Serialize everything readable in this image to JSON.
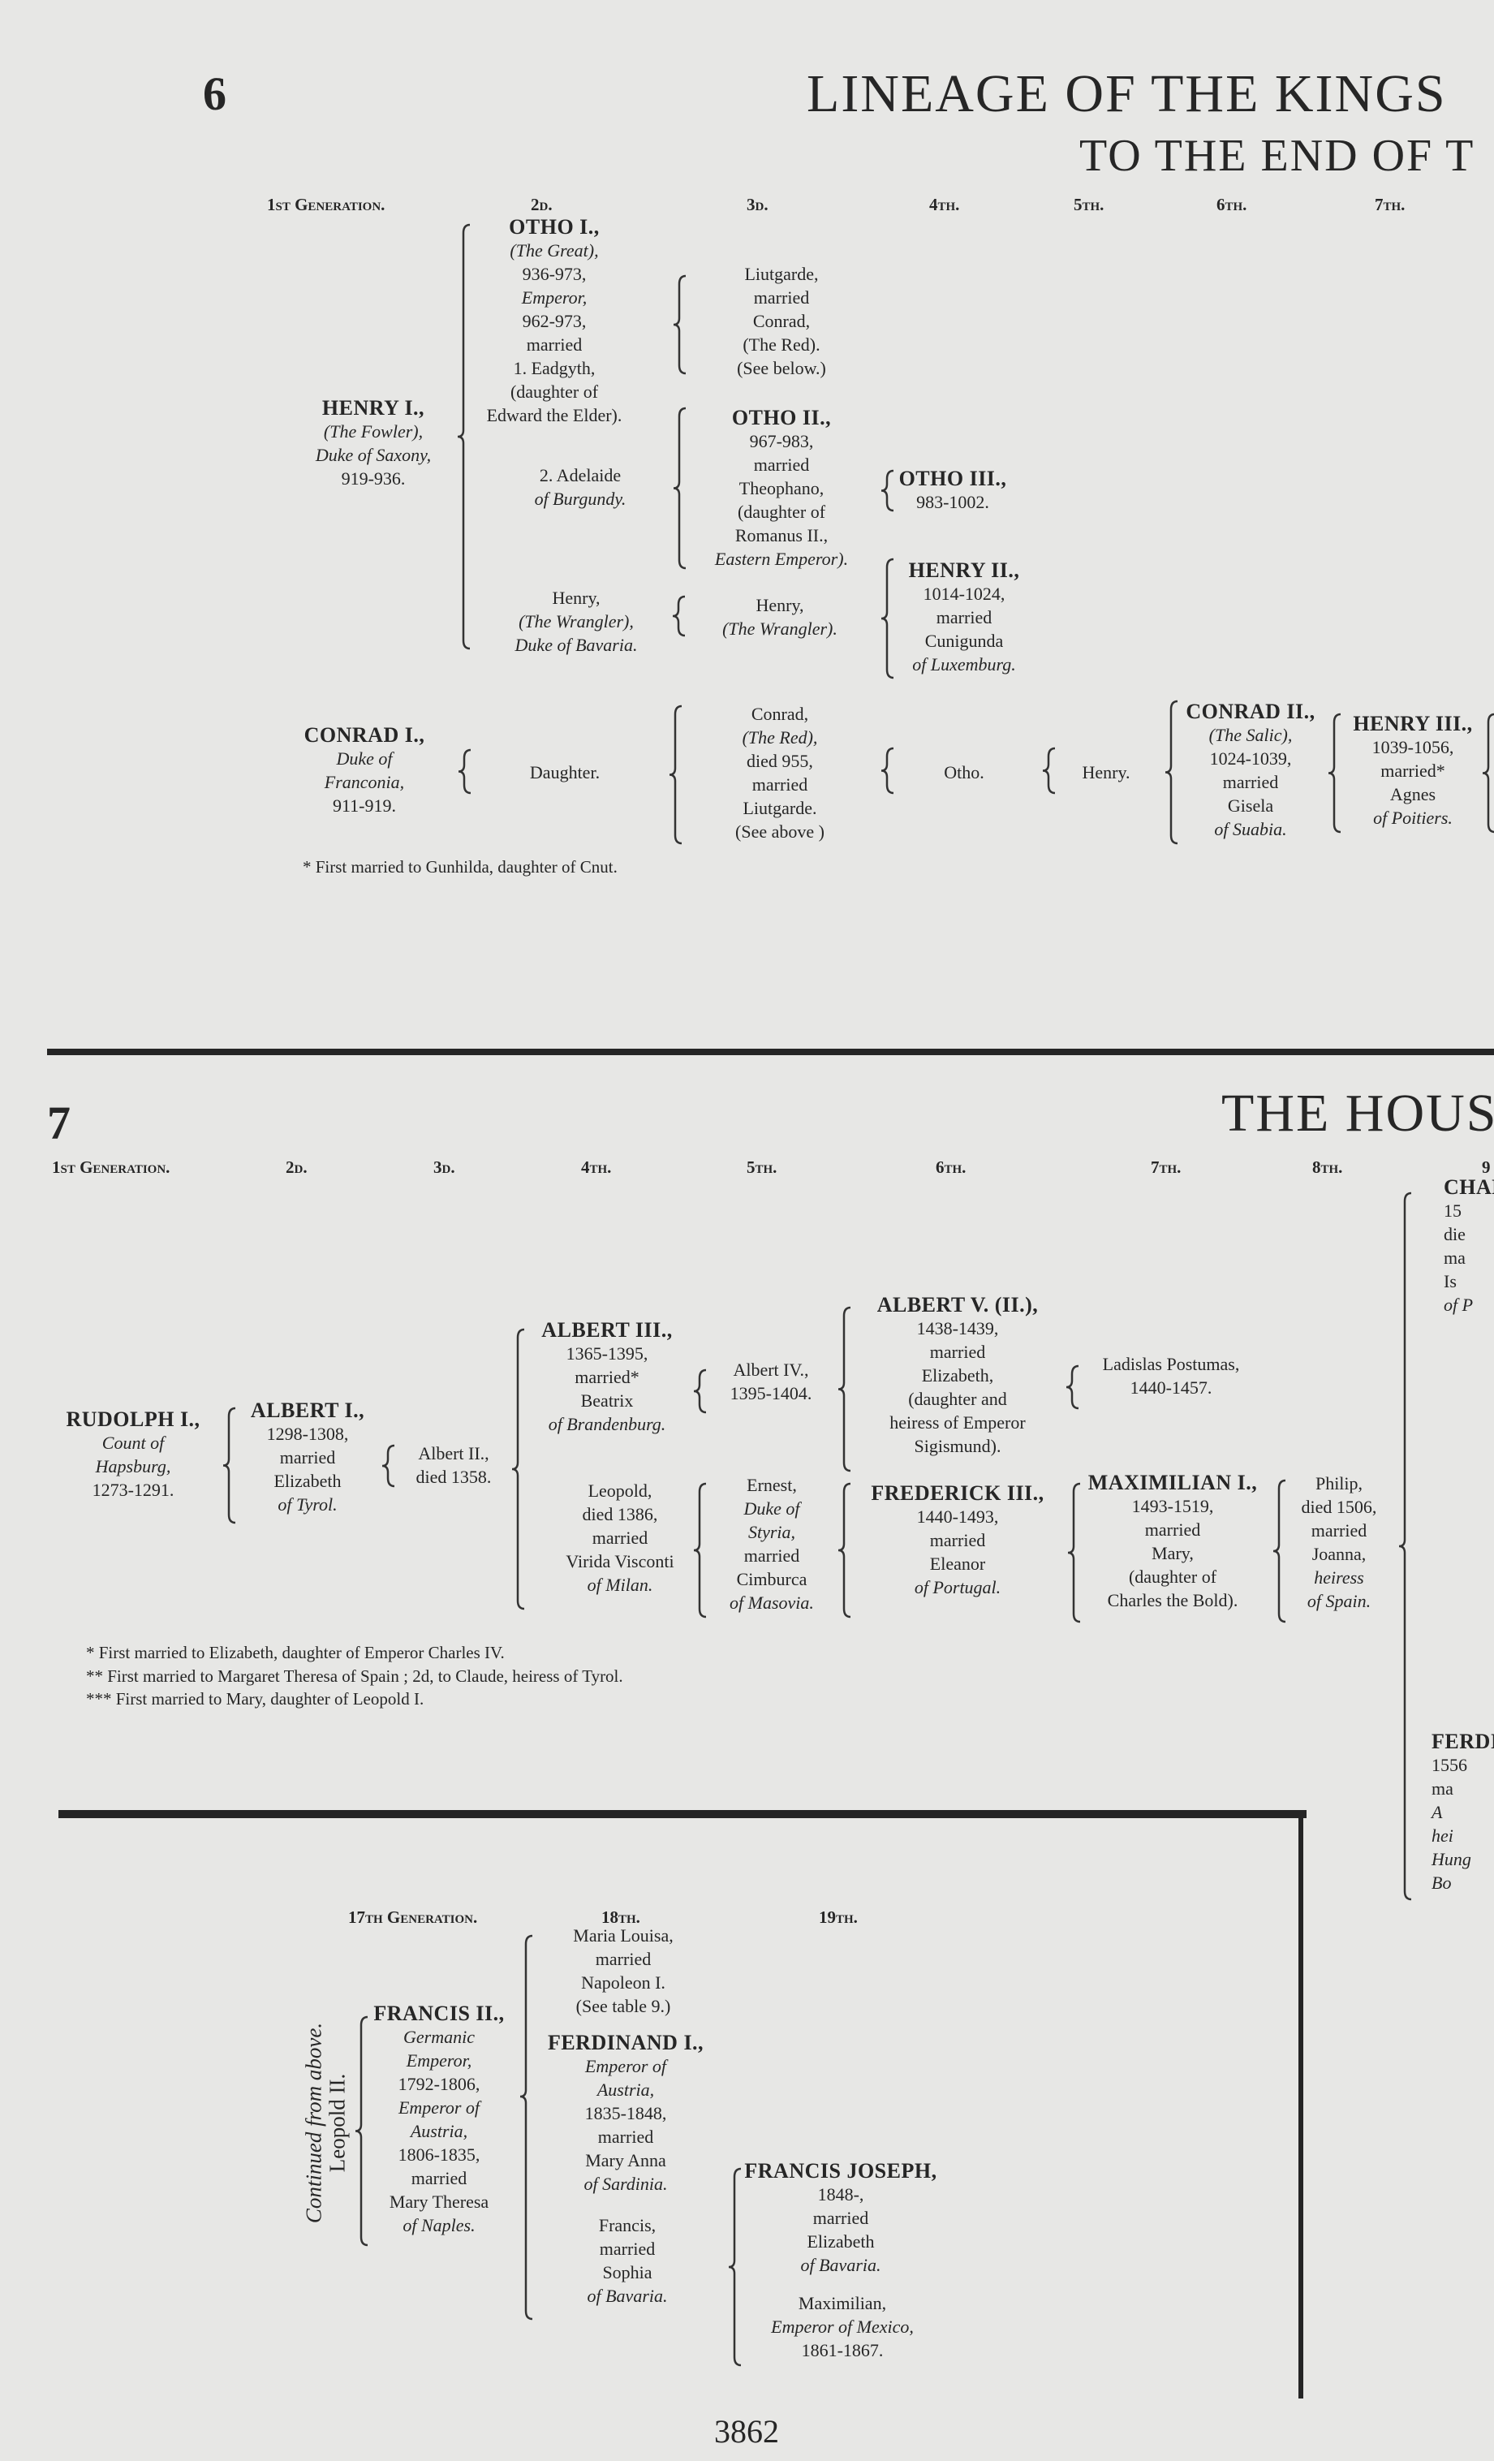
{
  "page": {
    "table6_number": "6",
    "table6_title": "LINEAGE OF THE KINGS",
    "table6_subtitle": "TO THE END OF T",
    "table7_number": "7",
    "table7_title": "THE HOUS",
    "page_number": "3862",
    "text_color": "#262626",
    "paper_color": "#e7e7e5"
  },
  "s6": {
    "headers": [
      "1st Generation.",
      "2d.",
      "3d.",
      "4th.",
      "5th.",
      "6th.",
      "7th."
    ],
    "blocks": [
      {
        "id": "henry-i",
        "lines": [
          {
            "t": "HENRY I.,",
            "s": "b"
          },
          {
            "t": "(The Fowler),",
            "s": "i"
          },
          {
            "t": "Duke of Saxony,",
            "s": "i"
          },
          {
            "t": "919-936.",
            "s": "n"
          }
        ]
      },
      {
        "id": "otho-i",
        "lines": [
          {
            "t": "OTHO I.,",
            "s": "b"
          },
          {
            "t": "(The Great),",
            "s": "i"
          },
          {
            "t": "936-973,",
            "s": "n"
          },
          {
            "t": "Emperor,",
            "s": "i"
          },
          {
            "t": "962-973,",
            "s": "n"
          },
          {
            "t": "married",
            "s": "n"
          },
          {
            "t": "1. Eadgyth,",
            "s": "n"
          },
          {
            "t": "(daughter of",
            "s": "n"
          },
          {
            "t": "Edward the Elder).",
            "s": "n"
          }
        ]
      },
      {
        "id": "adelaide",
        "lines": [
          {
            "t": "2. Adelaide",
            "s": "n"
          },
          {
            "t": "of Burgundy.",
            "s": "i"
          }
        ]
      },
      {
        "id": "henry-wrangler-2",
        "lines": [
          {
            "t": "Henry,",
            "s": "n"
          },
          {
            "t": "(The Wrangler),",
            "s": "i"
          },
          {
            "t": "Duke of Bavaria.",
            "s": "i"
          }
        ]
      },
      {
        "id": "liutgarde",
        "lines": [
          {
            "t": "Liutgarde,",
            "s": "n"
          },
          {
            "t": "married",
            "s": "n"
          },
          {
            "t": "Conrad,",
            "s": "n"
          },
          {
            "t": "(The Red).",
            "s": "n"
          },
          {
            "t": "(See below.)",
            "s": "n"
          }
        ]
      },
      {
        "id": "otho-ii",
        "lines": [
          {
            "t": "OTHO II.,",
            "s": "b"
          },
          {
            "t": "967-983,",
            "s": "n"
          },
          {
            "t": "married",
            "s": "n"
          },
          {
            "t": "Theophano,",
            "s": "n"
          },
          {
            "t": "(daughter of",
            "s": "n"
          },
          {
            "t": "Romanus II.,",
            "s": "n"
          },
          {
            "t": "Eastern Emperor).",
            "s": "i"
          }
        ]
      },
      {
        "id": "henry-wrangler-3",
        "lines": [
          {
            "t": "Henry,",
            "s": "n"
          },
          {
            "t": "(The Wrangler).",
            "s": "i"
          }
        ]
      },
      {
        "id": "otho-iii",
        "lines": [
          {
            "t": "OTHO III.,",
            "s": "b"
          },
          {
            "t": "983-1002.",
            "s": "n"
          }
        ]
      },
      {
        "id": "henry-ii",
        "lines": [
          {
            "t": "HENRY II.,",
            "s": "b"
          },
          {
            "t": "1014-1024,",
            "s": "n"
          },
          {
            "t": "married",
            "s": "n"
          },
          {
            "t": "Cunigunda",
            "s": "n"
          },
          {
            "t": "of Luxemburg.",
            "s": "i"
          }
        ]
      },
      {
        "id": "conrad-i",
        "lines": [
          {
            "t": "CONRAD I.,",
            "s": "b"
          },
          {
            "t": "Duke of",
            "s": "i"
          },
          {
            "t": "Franconia,",
            "s": "i"
          },
          {
            "t": "911-919.",
            "s": "n"
          }
        ]
      },
      {
        "id": "daughter",
        "lines": [
          {
            "t": "Daughter.",
            "s": "n"
          }
        ]
      },
      {
        "id": "conrad-the-red",
        "lines": [
          {
            "t": "Conrad,",
            "s": "n"
          },
          {
            "t": "(The Red),",
            "s": "i"
          },
          {
            "t": "died 955,",
            "s": "n"
          },
          {
            "t": "married",
            "s": "n"
          },
          {
            "t": "Liutgarde.",
            "s": "n"
          },
          {
            "t": "(See above )",
            "s": "n"
          }
        ]
      },
      {
        "id": "otho",
        "lines": [
          {
            "t": "Otho.",
            "s": "n"
          }
        ]
      },
      {
        "id": "henry",
        "lines": [
          {
            "t": "Henry.",
            "s": "n"
          }
        ]
      },
      {
        "id": "conrad-ii",
        "lines": [
          {
            "t": "CONRAD II.,",
            "s": "b"
          },
          {
            "t": "(The Salic),",
            "s": "i"
          },
          {
            "t": "1024-1039,",
            "s": "n"
          },
          {
            "t": "married",
            "s": "n"
          },
          {
            "t": "Gisela",
            "s": "n"
          },
          {
            "t": "of Suabia.",
            "s": "i"
          }
        ]
      },
      {
        "id": "henry-iii",
        "lines": [
          {
            "t": "HENRY III.,",
            "s": "b"
          },
          {
            "t": "1039-1056,",
            "s": "n"
          },
          {
            "t": "married*",
            "s": "n"
          },
          {
            "t": "Agnes",
            "s": "n"
          },
          {
            "t": "of Poitiers.",
            "s": "i"
          }
        ]
      }
    ],
    "footnotes": [
      "* First married to Gunhilda, daughter of Cnut."
    ]
  },
  "s7": {
    "headers": [
      "1st Generation.",
      "2d.",
      "3d.",
      "4th.",
      "5th.",
      "6th.",
      "7th.",
      "8th.",
      "9"
    ],
    "blocks": [
      {
        "id": "rudolph-i",
        "lines": [
          {
            "t": "RUDOLPH I.,",
            "s": "b"
          },
          {
            "t": "Count of",
            "s": "i"
          },
          {
            "t": "Hapsburg,",
            "s": "i"
          },
          {
            "t": "1273-1291.",
            "s": "n"
          }
        ]
      },
      {
        "id": "albert-i",
        "lines": [
          {
            "t": "ALBERT I.,",
            "s": "b"
          },
          {
            "t": "1298-1308,",
            "s": "n"
          },
          {
            "t": "married",
            "s": "n"
          },
          {
            "t": "Elizabeth",
            "s": "n"
          },
          {
            "t": "of Tyrol.",
            "s": "i"
          }
        ]
      },
      {
        "id": "albert-ii",
        "lines": [
          {
            "t": "Albert II.,",
            "s": "n"
          },
          {
            "t": "died 1358.",
            "s": "n"
          }
        ]
      },
      {
        "id": "albert-iii",
        "lines": [
          {
            "t": "ALBERT III.,",
            "s": "b"
          },
          {
            "t": "1365-1395,",
            "s": "n"
          },
          {
            "t": "married*",
            "s": "n"
          },
          {
            "t": "Beatrix",
            "s": "n"
          },
          {
            "t": "of Brandenburg.",
            "s": "i"
          }
        ]
      },
      {
        "id": "leopold",
        "lines": [
          {
            "t": "Leopold,",
            "s": "n"
          },
          {
            "t": "died 1386,",
            "s": "n"
          },
          {
            "t": "married",
            "s": "n"
          },
          {
            "t": "Virida Visconti",
            "s": "n"
          },
          {
            "t": "of Milan.",
            "s": "i"
          }
        ]
      },
      {
        "id": "albert-iv",
        "lines": [
          {
            "t": "Albert IV.,",
            "s": "n"
          },
          {
            "t": "1395-1404.",
            "s": "n"
          }
        ]
      },
      {
        "id": "ernest",
        "lines": [
          {
            "t": "Ernest,",
            "s": "n"
          },
          {
            "t": "Duke of",
            "s": "i"
          },
          {
            "t": "Styria,",
            "s": "i"
          },
          {
            "t": "married",
            "s": "n"
          },
          {
            "t": "Cimburca",
            "s": "n"
          },
          {
            "t": "of Masovia.",
            "s": "i"
          }
        ]
      },
      {
        "id": "albert-v",
        "lines": [
          {
            "t": "ALBERT V. (II.),",
            "s": "b"
          },
          {
            "t": "1438-1439,",
            "s": "n"
          },
          {
            "t": "married",
            "s": "n"
          },
          {
            "t": "Elizabeth,",
            "s": "n"
          },
          {
            "t": "(daughter and",
            "s": "n"
          },
          {
            "t": "heiress of Emperor",
            "s": "n"
          },
          {
            "t": "Sigismund).",
            "s": "n"
          }
        ]
      },
      {
        "id": "frederick-iii",
        "lines": [
          {
            "t": "FREDERICK III.,",
            "s": "b"
          },
          {
            "t": "1440-1493,",
            "s": "n"
          },
          {
            "t": "married",
            "s": "n"
          },
          {
            "t": "Eleanor",
            "s": "n"
          },
          {
            "t": "of Portugal.",
            "s": "i"
          }
        ]
      },
      {
        "id": "ladislas",
        "lines": [
          {
            "t": "Ladislas Postumas,",
            "s": "n"
          },
          {
            "t": "1440-1457.",
            "s": "n"
          }
        ]
      },
      {
        "id": "maximilian-i",
        "lines": [
          {
            "t": "MAXIMILIAN I.,",
            "s": "b"
          },
          {
            "t": "1493-1519,",
            "s": "n"
          },
          {
            "t": "married",
            "s": "n"
          },
          {
            "t": "Mary,",
            "s": "n"
          },
          {
            "t": "(daughter of",
            "s": "n"
          },
          {
            "t": "Charles the Bold).",
            "s": "n"
          }
        ]
      },
      {
        "id": "philip",
        "lines": [
          {
            "t": "Philip,",
            "s": "n"
          },
          {
            "t": "died 1506,",
            "s": "n"
          },
          {
            "t": "married",
            "s": "n"
          },
          {
            "t": "Joanna,",
            "s": "n"
          },
          {
            "t": "heiress",
            "s": "i"
          },
          {
            "t": "of Spain.",
            "s": "i"
          }
        ]
      },
      {
        "id": "charles-fragment",
        "lines": [
          {
            "t": "CHAR",
            "s": "b"
          },
          {
            "t": "15",
            "s": "n"
          },
          {
            "t": "die",
            "s": "n"
          },
          {
            "t": "ma",
            "s": "n"
          },
          {
            "t": "Is",
            "s": "n"
          },
          {
            "t": "of P",
            "s": "i"
          }
        ]
      },
      {
        "id": "ferdinand-fragment",
        "lines": [
          {
            "t": "FERDI",
            "s": "b"
          },
          {
            "t": "1556",
            "s": "n"
          },
          {
            "t": "ma",
            "s": "n"
          },
          {
            "t": "A",
            "s": "i"
          },
          {
            "t": "hei",
            "s": "i"
          },
          {
            "t": "Hung",
            "s": "i"
          },
          {
            "t": "Bo",
            "s": "i"
          }
        ]
      }
    ],
    "footnotes": [
      "* First married to Elizabeth, daughter of Emperor Charles IV.",
      "** First married to Margaret Theresa of Spain ; 2d, to Claude, heiress of Tyrol.",
      "*** First married to Mary, daughter of Leopold I."
    ]
  },
  "s7b": {
    "headers": [
      "17th Generation.",
      "18th.",
      "19th."
    ],
    "continued": "Continued from above.",
    "parent": "Leopold II.",
    "blocks": [
      {
        "id": "francis-ii",
        "lines": [
          {
            "t": "FRANCIS II.,",
            "s": "b"
          },
          {
            "t": "Germanic",
            "s": "i"
          },
          {
            "t": "Emperor,",
            "s": "i"
          },
          {
            "t": "1792-1806,",
            "s": "n"
          },
          {
            "t": "Emperor of",
            "s": "i"
          },
          {
            "t": "Austria,",
            "s": "i"
          },
          {
            "t": "1806-1835,",
            "s": "n"
          },
          {
            "t": "married",
            "s": "n"
          },
          {
            "t": "Mary Theresa",
            "s": "n"
          },
          {
            "t": "of Naples.",
            "s": "i"
          }
        ]
      },
      {
        "id": "maria-louisa",
        "lines": [
          {
            "t": "Maria Louisa,",
            "s": "n"
          },
          {
            "t": "married",
            "s": "n"
          },
          {
            "t": "Napoleon I.",
            "s": "n"
          },
          {
            "t": "(See table 9.)",
            "s": "n"
          }
        ]
      },
      {
        "id": "ferdinand-i",
        "lines": [
          {
            "t": "FERDINAND I.,",
            "s": "b"
          },
          {
            "t": "Emperor of",
            "s": "i"
          },
          {
            "t": "Austria,",
            "s": "i"
          },
          {
            "t": "1835-1848,",
            "s": "n"
          },
          {
            "t": "married",
            "s": "n"
          },
          {
            "t": "Mary Anna",
            "s": "n"
          },
          {
            "t": "of Sardinia.",
            "s": "i"
          }
        ]
      },
      {
        "id": "francis",
        "lines": [
          {
            "t": "Francis,",
            "s": "n"
          },
          {
            "t": "married",
            "s": "n"
          },
          {
            "t": "Sophia",
            "s": "n"
          },
          {
            "t": "of Bavaria.",
            "s": "i"
          }
        ]
      },
      {
        "id": "francis-joseph",
        "lines": [
          {
            "t": "FRANCIS JOSEPH,",
            "s": "b"
          },
          {
            "t": "1848-,",
            "s": "n"
          },
          {
            "t": "married",
            "s": "n"
          },
          {
            "t": "Elizabeth",
            "s": "n"
          },
          {
            "t": "of Bavaria.",
            "s": "i"
          }
        ]
      },
      {
        "id": "maximilian-mexico",
        "lines": [
          {
            "t": "Maximilian,",
            "s": "n"
          },
          {
            "t": "Emperor of Mexico,",
            "s": "i"
          },
          {
            "t": "1861-1867.",
            "s": "n"
          }
        ]
      }
    ]
  }
}
